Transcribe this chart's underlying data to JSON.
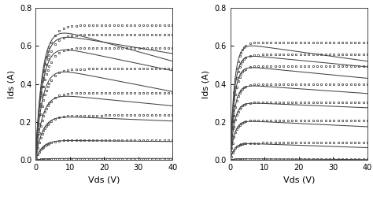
{
  "xlim": [
    0,
    40
  ],
  "ylim": [
    0,
    0.8
  ],
  "xlabel": "Vds (V)",
  "ylabel": "Ids (A)",
  "xticks": [
    0,
    10,
    20,
    30,
    40
  ],
  "yticks": [
    0.0,
    0.2,
    0.4,
    0.6,
    0.8
  ],
  "line_color": "#444444",
  "marker_color": "#444444",
  "background": "#ffffff",
  "left_curves": [
    {
      "Ids_peak": 0.72,
      "vknee": 2.0,
      "droop": 0.2,
      "meas_sat": 0.71
    },
    {
      "Ids_peak": 0.68,
      "vknee": 2.0,
      "droop": 0.12,
      "meas_sat": 0.66
    },
    {
      "Ids_peak": 0.62,
      "vknee": 2.0,
      "droop": 0.15,
      "meas_sat": 0.59
    },
    {
      "Ids_peak": 0.5,
      "vknee": 2.0,
      "droop": 0.14,
      "meas_sat": 0.48
    },
    {
      "Ids_peak": 0.355,
      "vknee": 2.0,
      "droop": 0.07,
      "meas_sat": 0.355
    },
    {
      "Ids_peak": 0.235,
      "vknee": 2.0,
      "droop": 0.03,
      "meas_sat": 0.235
    },
    {
      "Ids_peak": 0.105,
      "vknee": 2.0,
      "droop": 0.008,
      "meas_sat": 0.105
    },
    {
      "Ids_peak": 0.008,
      "vknee": 2.0,
      "droop": 0.0,
      "meas_sat": 0.007
    }
  ],
  "right_curves": [
    {
      "Ids_peak": 0.62,
      "vknee": 1.2,
      "droop": 0.1,
      "meas_sat": 0.62
    },
    {
      "Ids_peak": 0.56,
      "vknee": 1.2,
      "droop": 0.07,
      "meas_sat": 0.555
    },
    {
      "Ids_peak": 0.5,
      "vknee": 1.2,
      "droop": 0.07,
      "meas_sat": 0.495
    },
    {
      "Ids_peak": 0.4,
      "vknee": 1.2,
      "droop": 0.05,
      "meas_sat": 0.4
    },
    {
      "Ids_peak": 0.305,
      "vknee": 1.2,
      "droop": 0.03,
      "meas_sat": 0.305
    },
    {
      "Ids_peak": 0.21,
      "vknee": 1.2,
      "droop": 0.035,
      "meas_sat": 0.21
    },
    {
      "Ids_peak": 0.09,
      "vknee": 1.2,
      "droop": 0.025,
      "meas_sat": 0.09
    },
    {
      "Ids_peak": 0.007,
      "vknee": 1.2,
      "droop": 0.005,
      "meas_sat": 0.005
    }
  ]
}
